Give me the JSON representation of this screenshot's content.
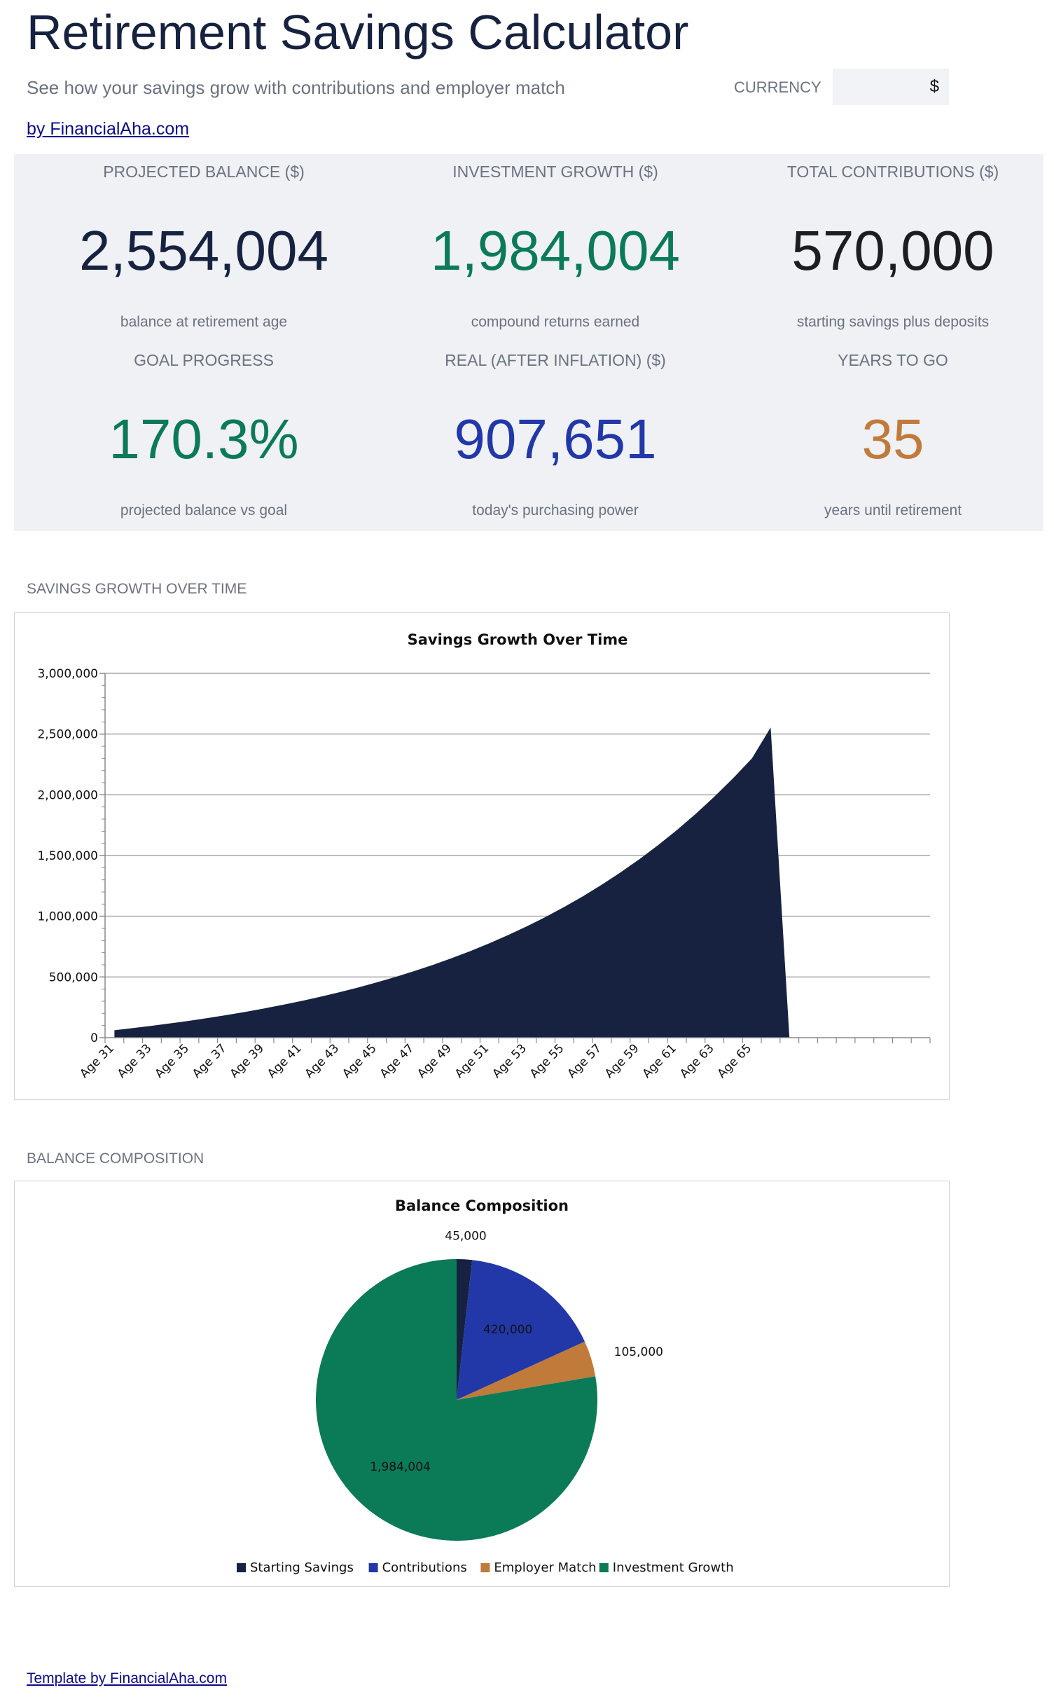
{
  "header": {
    "title": "Retirement Savings Calculator",
    "subtitle": "See how your savings grow with contributions and employer match",
    "currency_label": "CURRENCY",
    "currency_value": "$",
    "by_link": "by FinancialAha.com"
  },
  "kpis": [
    {
      "label": "PROJECTED BALANCE ($)",
      "value": "2,554,004",
      "sub": "balance at retirement age",
      "color": "#16223f"
    },
    {
      "label": "INVESTMENT GROWTH ($)",
      "value": "1,984,004",
      "sub": "compound returns earned",
      "color": "#0b7a57"
    },
    {
      "label": "TOTAL CONTRIBUTIONS ($)",
      "value": "570,000",
      "sub": "starting savings plus deposits",
      "color": "#1d1d1f"
    },
    {
      "label": "GOAL PROGRESS",
      "value": "170.3%",
      "sub": "projected balance vs goal",
      "color": "#0b7a57"
    },
    {
      "label": "REAL (AFTER INFLATION) ($)",
      "value": "907,651",
      "sub": "today's purchasing power",
      "color": "#2238a8"
    },
    {
      "label": "YEARS TO GO",
      "value": "35",
      "sub": "years until retirement",
      "color": "#c07a3a"
    }
  ],
  "sections": {
    "growth_label": "SAVINGS GROWTH OVER TIME",
    "composition_label": "BALANCE COMPOSITION"
  },
  "footer": {
    "link": "Template by FinancialAha.com"
  },
  "chart_data": [
    {
      "type": "area",
      "title": "Savings Growth Over Time",
      "xlabel": "",
      "ylabel": "",
      "ylim": [
        0,
        3000000
      ],
      "y_ticks": [
        "0",
        "500,000",
        "1,000,000",
        "1,500,000",
        "2,000,000",
        "2,500,000",
        "3,000,000"
      ],
      "grid": true,
      "color": "#16223f",
      "x_tick_labels": [
        "Age 31",
        "Age 33",
        "Age 35",
        "Age 37",
        "Age 39",
        "Age 41",
        "Age 43",
        "Age 45",
        "Age 47",
        "Age 49",
        "Age 51",
        "Age 53",
        "Age 55",
        "Age 57",
        "Age 59",
        "Age 61",
        "Age 63",
        "Age 65"
      ],
      "categories": [
        "Age 31",
        "Age 32",
        "Age 33",
        "Age 34",
        "Age 35",
        "Age 36",
        "Age 37",
        "Age 38",
        "Age 39",
        "Age 40",
        "Age 41",
        "Age 42",
        "Age 43",
        "Age 44",
        "Age 45",
        "Age 46",
        "Age 47",
        "Age 48",
        "Age 49",
        "Age 50",
        "Age 51",
        "Age 52",
        "Age 53",
        "Age 54",
        "Age 55",
        "Age 56",
        "Age 57",
        "Age 58",
        "Age 59",
        "Age 60",
        "Age 61",
        "Age 62",
        "Age 63",
        "Age 64",
        "Age 65",
        "Age 66",
        "",
        "",
        "",
        "",
        "",
        "",
        "",
        ""
      ],
      "values": [
        61300,
        79000,
        98000,
        118000,
        139500,
        162400,
        186900,
        213100,
        241100,
        271100,
        303200,
        337500,
        374200,
        413500,
        455600,
        500600,
        548700,
        600200,
        655300,
        714300,
        777400,
        844900,
        917100,
        994400,
        1077100,
        1165600,
        1260300,
        1361600,
        1470000,
        1586000,
        1710100,
        1842900,
        1985000,
        2137000,
        2299700,
        2554004,
        0,
        null,
        null,
        null,
        null,
        null,
        null,
        null
      ]
    },
    {
      "type": "pie",
      "title": "Balance Composition",
      "legend_position": "bottom",
      "slices": [
        {
          "label": "Starting Savings",
          "value": 45000,
          "display": "45,000",
          "color": "#16223f"
        },
        {
          "label": "Contributions",
          "value": 420000,
          "display": "420,000",
          "color": "#2238a8"
        },
        {
          "label": "Employer Match",
          "value": 105000,
          "display": "105,000",
          "color": "#c07a3a"
        },
        {
          "label": "Investment Growth",
          "value": 1984004,
          "display": "1,984,004",
          "color": "#0b7a57"
        }
      ]
    }
  ]
}
